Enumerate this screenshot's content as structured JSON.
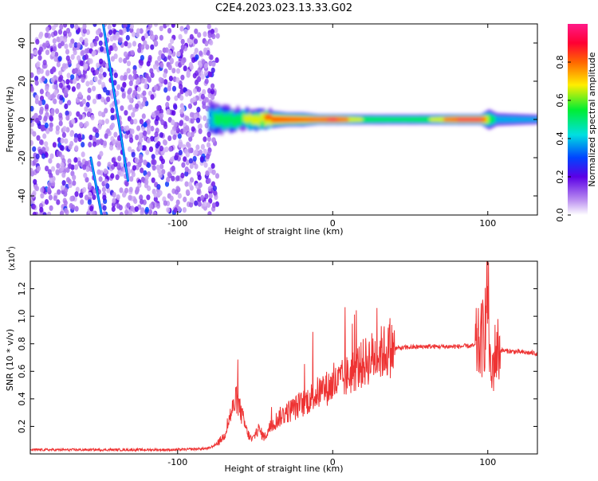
{
  "title": "C2E4.2023.023.13.33.G02",
  "colorbar": {
    "label": "Normalized spectral amplitude",
    "ticks": [
      "0.0",
      "0.2",
      "0.4",
      "0.6",
      "0.8"
    ],
    "tick_values": [
      0.0,
      0.2,
      0.4,
      0.6,
      0.8
    ],
    "range": [
      0,
      1
    ]
  },
  "chart_data": [
    {
      "type": "heatmap",
      "xlabel": "Height of straight line (km)",
      "ylabel": "Frequency (Hz)",
      "xlim": [
        -195,
        132
      ],
      "ylim": [
        -50,
        50
      ],
      "xticks": [
        -100,
        0,
        100
      ],
      "xtick_labels": [
        "-100",
        "0",
        "100"
      ],
      "yticks": [
        -40,
        -20,
        0,
        20,
        40
      ],
      "ytick_labels": [
        "-40",
        "-20",
        "0",
        "20",
        "40"
      ],
      "noise_region": {
        "x": [
          -195,
          -74
        ],
        "y": [
          -50,
          50
        ],
        "amplitude": 0.15
      },
      "streaks": [
        {
          "x": [
            -148,
            -132
          ],
          "y": [
            50,
            -32
          ],
          "amplitude": 0.3
        },
        {
          "x": [
            -156,
            -149
          ],
          "y": [
            -20,
            -50
          ],
          "amplitude": 0.3
        }
      ],
      "band": {
        "center_hz": 0,
        "x": [
          -80,
          -70,
          -60,
          -50,
          -40,
          -30,
          -20,
          -10,
          0,
          10,
          20,
          40,
          60,
          80,
          95,
          100,
          105,
          132
        ],
        "amplitude": [
          0.45,
          0.55,
          0.6,
          0.7,
          0.8,
          0.85,
          0.78,
          0.85,
          0.95,
          0.75,
          0.6,
          0.55,
          0.6,
          0.9,
          0.9,
          0.6,
          0.4,
          0.35
        ],
        "half_width_hz": [
          10,
          8,
          6,
          6,
          5,
          4,
          4,
          3,
          3,
          3,
          3,
          3,
          3,
          3,
          3,
          6,
          4,
          3
        ]
      }
    },
    {
      "type": "line",
      "xlabel": "Height of straight line (km)",
      "ylabel": "SNR (10 * v/v)",
      "scale_label": "(x10",
      "scale_exp": "4",
      "scale_close": ")",
      "xlim": [
        -195,
        132
      ],
      "ylim": [
        0,
        14000
      ],
      "xticks": [
        -100,
        0,
        100
      ],
      "xtick_labels": [
        "-100",
        "0",
        "100"
      ],
      "yticks": [
        2000,
        4000,
        6000,
        8000,
        10000,
        12000
      ],
      "ytick_labels": [
        "0.2",
        "0.4",
        "0.6",
        "0.8",
        "1.0",
        "1.2"
      ],
      "series": [
        {
          "color": "#ee3333",
          "x": [
            -195,
            -150,
            -100,
            -80,
            -75,
            -70,
            -66,
            -62,
            -58,
            -55,
            -52,
            -48,
            -44,
            -40,
            -35,
            -30,
            -25,
            -20,
            -15,
            -10,
            -5,
            0,
            5,
            10,
            15,
            20,
            25,
            30,
            35,
            40,
            50,
            60,
            70,
            80,
            90,
            95,
            98,
            100,
            102,
            104,
            106,
            110,
            120,
            132
          ],
          "y": [
            300,
            300,
            300,
            400,
            700,
            1300,
            2800,
            4000,
            2600,
            1500,
            1000,
            1800,
            1200,
            2000,
            2600,
            3000,
            3300,
            3600,
            4000,
            4400,
            4700,
            5000,
            5300,
            5700,
            6200,
            6600,
            7000,
            7300,
            7500,
            7650,
            7750,
            7800,
            7800,
            7800,
            7850,
            7900,
            9000,
            12000,
            5000,
            7000,
            7600,
            7500,
            7400,
            7300
          ]
        }
      ]
    }
  ]
}
